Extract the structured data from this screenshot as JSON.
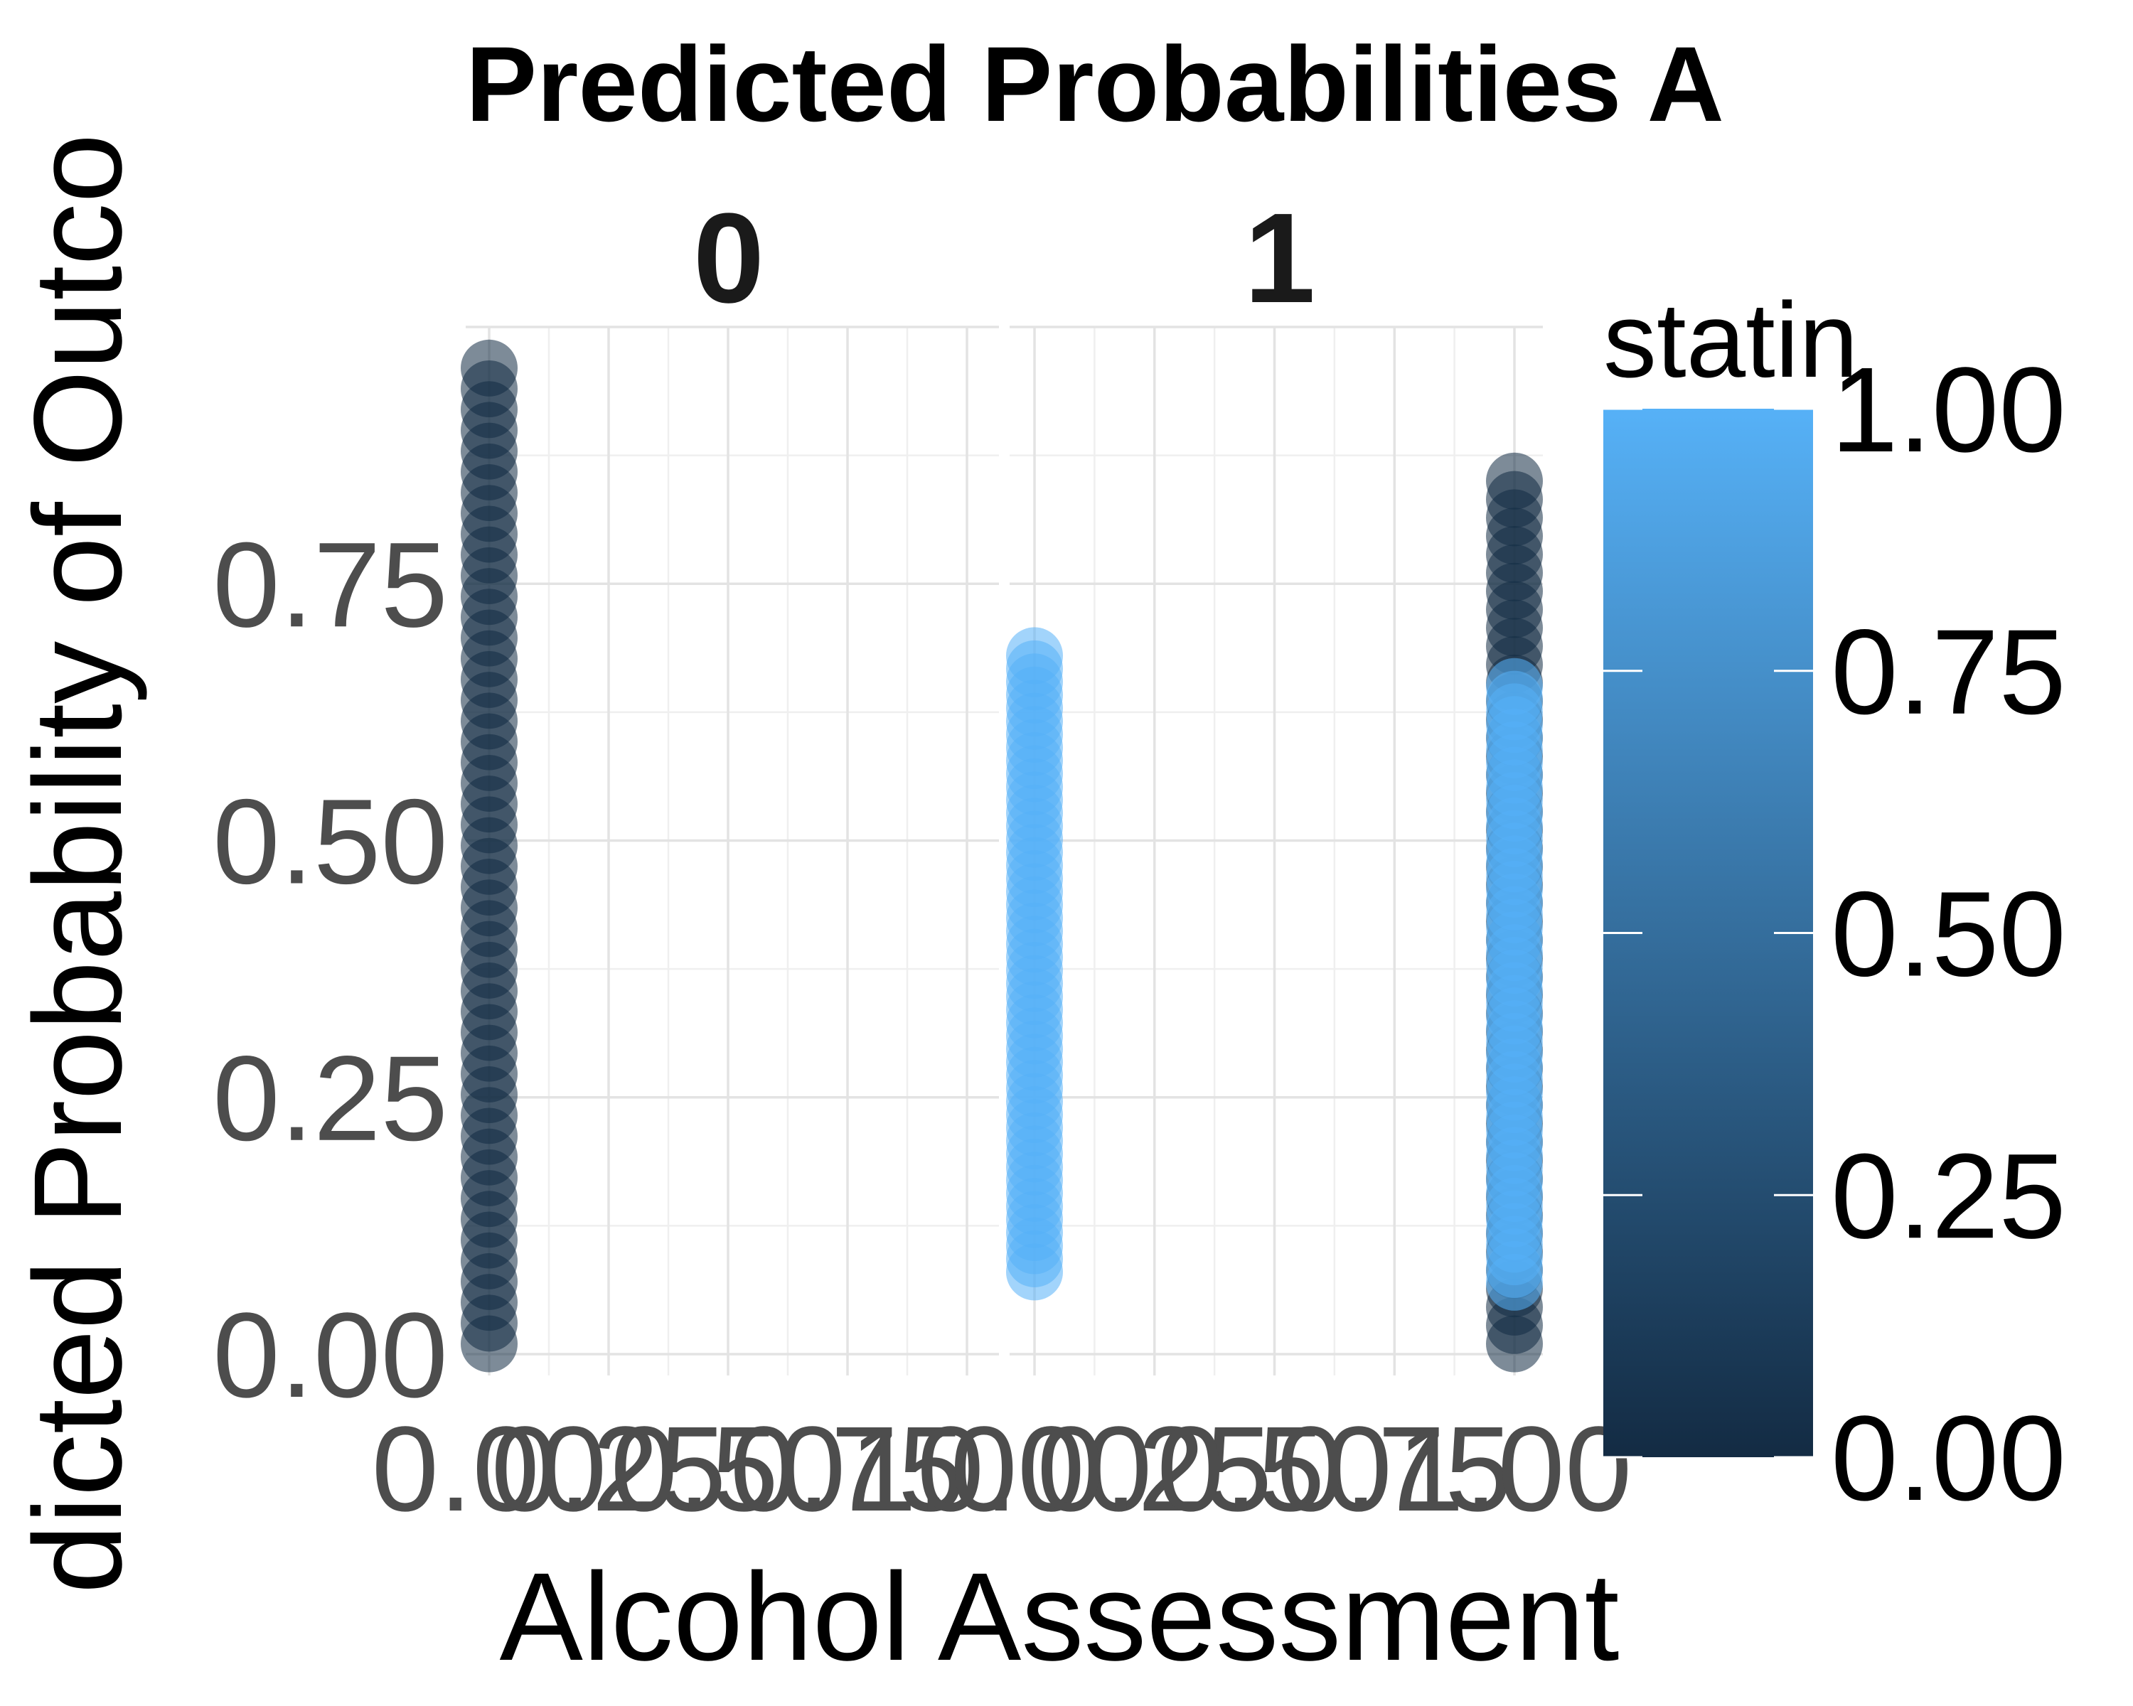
{
  "chart_data": {
    "type": "scatter",
    "title": "Predicted Probabilities A",
    "xlabel": "Alcohol Assessment",
    "ylabel": "dicted Probability of Outco",
    "ylim": [
      0,
      1
    ],
    "ytick_labels": [
      "0.00",
      "0.25",
      "0.50",
      "0.75"
    ],
    "xtick_labels": [
      "0.00",
      "0.25",
      "0.50",
      "0.75",
      "1.00"
    ],
    "grid": true,
    "facets": [
      {
        "label": "0",
        "series": [
          {
            "statin": 0,
            "x": 0,
            "y_min": 0.01,
            "y_max": 0.96
          }
        ]
      },
      {
        "label": "1",
        "series": [
          {
            "statin": 0,
            "x": 1,
            "y_min": 0.01,
            "y_max": 0.85
          },
          {
            "statin": 1,
            "x": 0,
            "y_min": 0.08,
            "y_max": 0.68
          },
          {
            "statin": 1,
            "x": 1,
            "y_min": 0.07,
            "y_max": 0.65
          }
        ]
      }
    ],
    "legend": {
      "title": "statin",
      "position": "right",
      "ticks": [
        "1.00",
        "0.75",
        "0.50",
        "0.25",
        "0.00"
      ],
      "low_color": "#132b43",
      "high_color": "#56b1f7"
    }
  }
}
